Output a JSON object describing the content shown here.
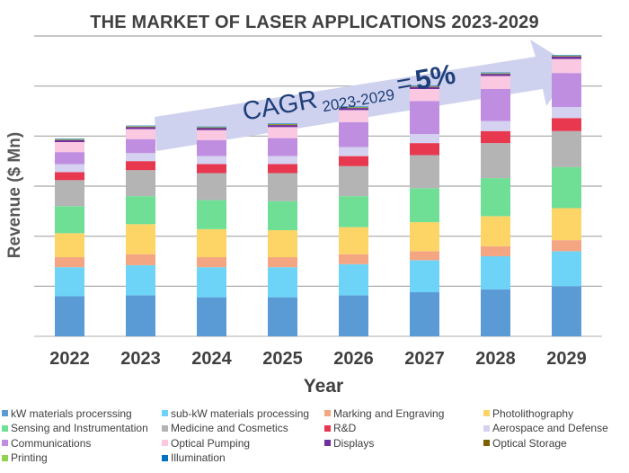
{
  "chart_data": {
    "type": "bar",
    "stacked": true,
    "title": "THE MARKET OF LASER APPLICATIONS 2023-2029",
    "xlabel": "Year",
    "ylabel": "Revenue ($ Mn)",
    "ylim": [
      0,
      6
    ],
    "grid": true,
    "legend_position": "bottom",
    "categories": [
      "2022",
      "2023",
      "2024",
      "2025",
      "2026",
      "2027",
      "2028",
      "2029"
    ],
    "series": [
      {
        "name": "kW materials procerssing",
        "color": "#5b9bd5",
        "values": [
          0.8,
          0.82,
          0.78,
          0.78,
          0.82,
          0.88,
          0.94,
          1.0
        ]
      },
      {
        "name": "sub-kW materials processing",
        "color": "#6dd4f8",
        "values": [
          0.58,
          0.6,
          0.6,
          0.6,
          0.62,
          0.64,
          0.66,
          0.7
        ]
      },
      {
        "name": "Marking and Engraving",
        "color": "#f4a582",
        "values": [
          0.2,
          0.22,
          0.2,
          0.2,
          0.2,
          0.18,
          0.2,
          0.22
        ]
      },
      {
        "name": "Photolithography",
        "color": "#fdd466",
        "values": [
          0.48,
          0.6,
          0.56,
          0.54,
          0.54,
          0.58,
          0.6,
          0.64
        ]
      },
      {
        "name": "Sensing and Instrumentation",
        "color": "#6fdf96",
        "values": [
          0.54,
          0.56,
          0.58,
          0.58,
          0.62,
          0.68,
          0.76,
          0.82
        ]
      },
      {
        "name": "Medicine and Cosmetics",
        "color": "#b4b4b4",
        "values": [
          0.52,
          0.52,
          0.54,
          0.56,
          0.6,
          0.66,
          0.7,
          0.72
        ]
      },
      {
        "name": "R&D",
        "color": "#e8384f",
        "values": [
          0.16,
          0.18,
          0.18,
          0.18,
          0.2,
          0.24,
          0.24,
          0.26
        ]
      },
      {
        "name": "Aerospace and Defense",
        "color": "#d4d2f0",
        "values": [
          0.16,
          0.16,
          0.16,
          0.16,
          0.18,
          0.18,
          0.2,
          0.22
        ]
      },
      {
        "name": "Communications",
        "color": "#c08ee0",
        "values": [
          0.24,
          0.28,
          0.32,
          0.36,
          0.5,
          0.66,
          0.64,
          0.68
        ]
      },
      {
        "name": "Optical Pumping",
        "color": "#fbc8e2",
        "values": [
          0.2,
          0.2,
          0.2,
          0.22,
          0.24,
          0.24,
          0.26,
          0.28
        ]
      },
      {
        "name": "Displays",
        "color": "#7030a0",
        "values": [
          0.04,
          0.04,
          0.04,
          0.04,
          0.04,
          0.04,
          0.04,
          0.05
        ]
      },
      {
        "name": "Optical Storage",
        "color": "#7f6000",
        "values": [
          0.01,
          0.01,
          0.01,
          0.01,
          0.01,
          0.01,
          0.01,
          0.01
        ]
      },
      {
        "name": "Printing",
        "color": "#92d050",
        "values": [
          0.01,
          0.01,
          0.01,
          0.01,
          0.01,
          0.01,
          0.01,
          0.01
        ]
      },
      {
        "name": "Illumination",
        "color": "#0070c0",
        "values": [
          0.01,
          0.01,
          0.01,
          0.01,
          0.01,
          0.01,
          0.01,
          0.01
        ]
      }
    ],
    "annotation": {
      "cagr_prefix": "CAGR",
      "cagr_period": "2023-2029",
      "cagr_equals": "=",
      "cagr_value": "5%"
    }
  }
}
